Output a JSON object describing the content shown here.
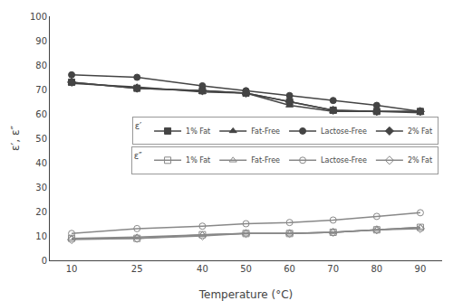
{
  "chart_data": {
    "type": "line",
    "xlabel": "Temperature (°C)",
    "ylabel": "ε′, ε″",
    "x": [
      10,
      25,
      40,
      50,
      60,
      70,
      80,
      90
    ],
    "series": [
      {
        "name": "1% Fat",
        "color": "#444444",
        "marker": "square",
        "values": [
          73.0,
          70.5,
          69.5,
          68.5,
          65.0,
          61.5,
          61.0,
          61.0
        ]
      },
      {
        "name": "Fat-Free",
        "color": "#444444",
        "marker": "triangle-up",
        "values": [
          72.5,
          71.0,
          69.0,
          68.5,
          63.5,
          61.0,
          61.0,
          60.5
        ]
      },
      {
        "name": "Lactose-Free",
        "color": "#444444",
        "marker": "circle",
        "values": [
          76.0,
          75.0,
          71.5,
          69.5,
          67.5,
          65.5,
          63.5,
          61.0
        ]
      },
      {
        "name": "2% Fat",
        "color": "#444444",
        "marker": "diamond",
        "values": [
          73.0,
          70.5,
          69.5,
          68.5,
          65.0,
          61.5,
          61.0,
          61.0
        ]
      },
      {
        "name": "1% Fat",
        "color": "#888888",
        "marker": "square-open",
        "values": [
          9.0,
          9.0,
          10.5,
          11.0,
          11.0,
          11.5,
          12.5,
          13.5
        ]
      },
      {
        "name": "Fat-Free",
        "color": "#888888",
        "marker": "triangle-up-open",
        "values": [
          9.0,
          9.5,
          10.5,
          11.0,
          11.0,
          11.5,
          12.5,
          13.5
        ]
      },
      {
        "name": "Lactose-Free",
        "color": "#888888",
        "marker": "circle-open",
        "values": [
          11.0,
          13.0,
          14.0,
          15.0,
          15.5,
          16.5,
          18.0,
          19.5
        ]
      },
      {
        "name": "2% Fat",
        "color": "#888888",
        "marker": "diamond-open",
        "values": [
          8.5,
          9.0,
          10.0,
          11.0,
          11.0,
          11.5,
          12.5,
          13.0
        ]
      }
    ],
    "xlim": [
      5,
      95
    ],
    "ylim": [
      0,
      100
    ],
    "xticks": [
      10,
      25,
      40,
      50,
      60,
      70,
      80,
      90
    ],
    "yticks": [
      0,
      10,
      20,
      30,
      40,
      50,
      60,
      70,
      80,
      90,
      100
    ],
    "grid": false,
    "legend": "center",
    "annotations": [
      "ε′",
      "ε″"
    ]
  }
}
